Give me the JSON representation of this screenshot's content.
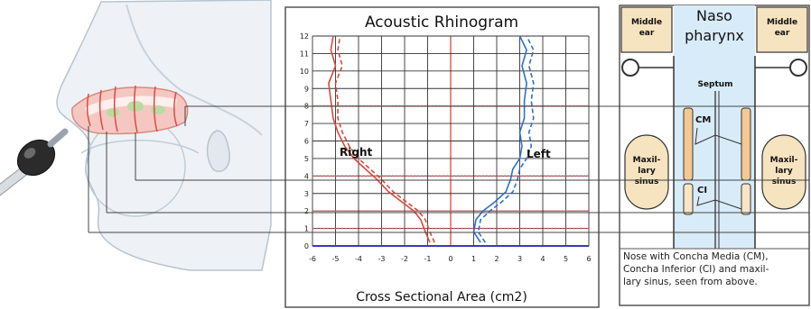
{
  "title": "Acoustic Rhinogram",
  "xlabel": "Cross Sectional Area (cm2)",
  "side_labels": {
    "right": "Right",
    "left": "Left"
  },
  "x_ticks": [
    "-6",
    "-5",
    "-4",
    "-3",
    "-2",
    "-1",
    "0",
    "1",
    "2",
    "3",
    "4",
    "5",
    "6"
  ],
  "y_ticks": [
    "0",
    "1",
    "2",
    "3",
    "4",
    "5",
    "6",
    "7",
    "8",
    "9",
    "10",
    "11",
    "12"
  ],
  "nasopharynx": {
    "title_line1": "Naso",
    "title_line2": "pharynx",
    "middle_ear_left_line1": "Middle",
    "middle_ear_left_line2": "ear",
    "middle_ear_right_line1": "Middle",
    "middle_ear_right_line2": "ear",
    "septum": "Septum",
    "cm": "CM",
    "ci": "CI",
    "maxillary_left": [
      "Maxil-",
      "lary",
      "sinus"
    ],
    "maxillary_right": [
      "Maxil-",
      "lary",
      "sinus"
    ]
  },
  "caption_lines": [
    "Nose with Concha Media (CM),",
    "Concha Inferior (CI) and maxil-",
    "lary sinus, seen from above."
  ],
  "colors": {
    "right_curve": "#d94a3a",
    "left_curve": "#2f6fcf",
    "baseline": "#3a3ab8",
    "marker": "#e05050",
    "sinus_fill": "#f6e3bf",
    "nasopharynx_fill": "#d8ebf8",
    "concha_fill": "#f4c890"
  },
  "chart_data": {
    "type": "line",
    "title": "Acoustic Rhinogram",
    "xlabel": "Cross Sectional Area (cm2)",
    "ylabel": "",
    "xlim": [
      -6,
      6
    ],
    "ylim": [
      0,
      12
    ],
    "grid": true,
    "series": [
      {
        "name": "Right",
        "x": [
          -0.9,
          -1.1,
          -1.3,
          -1.6,
          -2.1,
          -2.7,
          -3.2,
          -3.7,
          -4.2,
          -4.6,
          -4.9,
          -5.1,
          -5.2,
          -5.3,
          -5.0,
          -5.2,
          -5.1
        ],
        "y": [
          0.2,
          0.8,
          1.5,
          2.0,
          2.5,
          3.1,
          3.8,
          4.4,
          5.0,
          5.7,
          6.5,
          7.3,
          8.3,
          9.3,
          10.3,
          11.2,
          12.0
        ]
      },
      {
        "name": "Right",
        "x": [
          -0.7,
          -0.9,
          -1.1,
          -1.4,
          -1.9,
          -2.5,
          -3.0,
          -3.5,
          -4.0,
          -4.4,
          -4.7,
          -4.9,
          -4.9,
          -5.0,
          -4.7,
          -4.9,
          -4.8
        ],
        "y": [
          0.2,
          0.8,
          1.5,
          2.0,
          2.5,
          3.1,
          3.8,
          4.4,
          5.0,
          5.7,
          6.5,
          7.3,
          8.3,
          9.3,
          10.3,
          11.2,
          12.0
        ]
      },
      {
        "name": "Left",
        "x": [
          1.3,
          1.0,
          1.1,
          1.4,
          1.9,
          2.4,
          2.6,
          2.7,
          3.0,
          3.1,
          3.0,
          3.2,
          3.2,
          3.3,
          3.1,
          3.3,
          3.0
        ],
        "y": [
          0.2,
          0.8,
          1.5,
          2.0,
          2.5,
          3.1,
          3.8,
          4.4,
          5.0,
          5.7,
          6.5,
          7.3,
          8.3,
          9.3,
          10.3,
          11.2,
          12.0
        ]
      },
      {
        "name": "Left",
        "x": [
          1.5,
          1.2,
          1.3,
          1.7,
          2.2,
          2.7,
          2.9,
          3.0,
          3.3,
          3.5,
          3.4,
          3.6,
          3.5,
          3.6,
          3.4,
          3.6,
          3.3
        ],
        "y": [
          0.2,
          0.8,
          1.5,
          2.0,
          2.5,
          3.1,
          3.8,
          4.4,
          5.0,
          5.7,
          6.5,
          7.3,
          8.3,
          9.3,
          10.3,
          11.2,
          12.0
        ]
      }
    ],
    "reference_levels": [
      1.0,
      2.0,
      4.0,
      8.0
    ]
  }
}
